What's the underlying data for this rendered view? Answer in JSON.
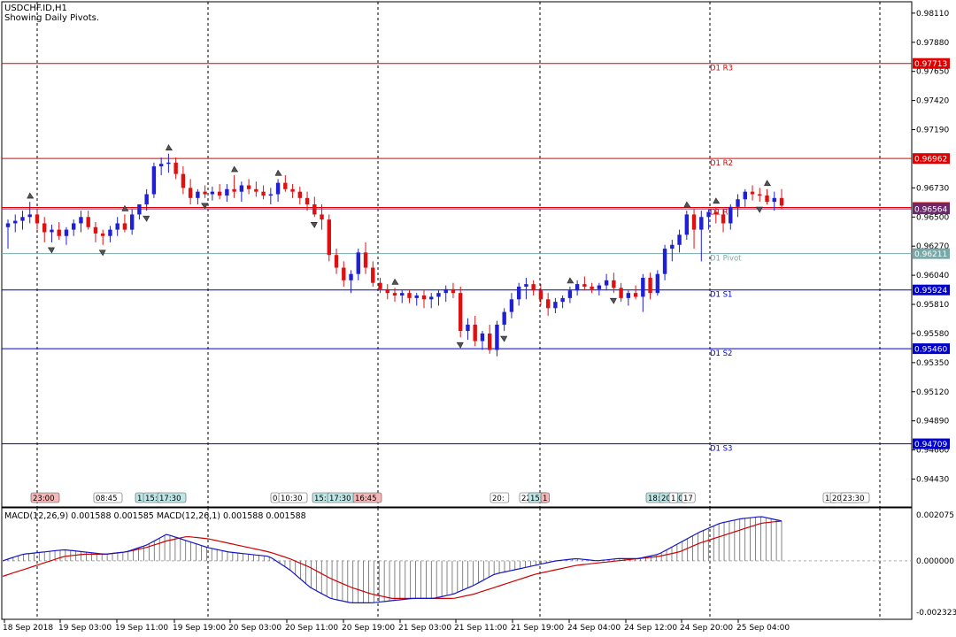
{
  "header": {
    "symbol": "USDCHF.ID,H1",
    "subtitle": "Showing Daily Pivots."
  },
  "macd_label": "MACD(12,26,9) 0.001588 0.001585 MACD(12,26,1) 0.001588 0.001588",
  "colors": {
    "bull": "#1f1fd6",
    "bear": "#e01010",
    "resistance": "#e00000",
    "support": "#0000cc",
    "pivot": "#7aa8a8",
    "macd_signal": "#cc0000",
    "macd_main": "#1515c8",
    "grid": "#000000"
  },
  "chart_data": [
    {
      "type": "candlestick",
      "title": "USDCHF.ID,H1",
      "ylim": [
        0.9421,
        0.982
      ],
      "y_ticks": [
        "0.98110",
        "0.97880",
        "0.97650",
        "0.97420",
        "0.97190",
        "0.96730",
        "0.96500",
        "0.96270",
        "0.96040",
        "0.95810",
        "0.95580",
        "0.95350",
        "0.95120",
        "0.94890",
        "0.94660",
        "0.94430"
      ],
      "x_tick_labels": [
        "18 Sep 2018",
        "19 Sep 03:00",
        "19 Sep 11:00",
        "19 Sep 19:00",
        "20 Sep 03:00",
        "20 Sep 11:00",
        "20 Sep 19:00",
        "21 Sep 03:00",
        "21 Sep 11:00",
        "21 Sep 19:00",
        "24 Sep 04:00",
        "24 Sep 12:00",
        "24 Sep 20:00",
        "25 Sep 04:00"
      ],
      "pivots": [
        {
          "name": "D1 R3",
          "value": 0.97713,
          "label": "0.97713",
          "kind": "resistance"
        },
        {
          "name": "D1 R2",
          "value": 0.96962,
          "label": "0.96962",
          "kind": "resistance"
        },
        {
          "name": "D1 R1",
          "value": 0.96575,
          "label": "0.96575",
          "kind": "resistance"
        },
        {
          "name": "D1 Pivot",
          "value": 0.96211,
          "label": "0.96211",
          "kind": "pivot"
        },
        {
          "name": "D1 S1",
          "value": 0.95924,
          "label": "0.95924",
          "kind": "support"
        },
        {
          "name": "D1 S2",
          "value": 0.9546,
          "label": "0.95460",
          "kind": "support"
        },
        {
          "name": "D1 S3",
          "value": 0.94709,
          "label": "0.94709",
          "kind": "support"
        }
      ],
      "current_price": {
        "value": 0.96564,
        "label": "0.96564"
      },
      "session_labels": [
        {
          "text": "23:00",
          "kind": "red"
        },
        {
          "text": "08:45",
          "kind": "plain"
        },
        {
          "text": "1",
          "kind": "teal"
        },
        {
          "text": "15:",
          "kind": "teal"
        },
        {
          "text": "17:30",
          "kind": "teal"
        },
        {
          "text": "0",
          "kind": "plain"
        },
        {
          "text": "10:30",
          "kind": "plain"
        },
        {
          "text": "15:",
          "kind": "teal"
        },
        {
          "text": "17:30",
          "kind": "teal"
        },
        {
          "text": "16:45",
          "kind": "red"
        },
        {
          "text": "20:",
          "kind": "plain"
        },
        {
          "text": "22:30",
          "kind": "plain"
        },
        {
          "text": "15:",
          "kind": "teal"
        },
        {
          "text": "1",
          "kind": "red"
        },
        {
          "text": "18:",
          "kind": "teal"
        },
        {
          "text": "20:00",
          "kind": "teal"
        },
        {
          "text": "1",
          "kind": "plain"
        },
        {
          "text": "17",
          "kind": "plain"
        },
        {
          "text": "18",
          "kind": "plain"
        },
        {
          "text": "20:00",
          "kind": "plain"
        },
        {
          "text": "23:30",
          "kind": "plain"
        }
      ],
      "candles": [
        [
          0.9642,
          0.9648,
          0.9625,
          0.9645
        ],
        [
          0.9645,
          0.9652,
          0.9638,
          0.9647
        ],
        [
          0.9647,
          0.9655,
          0.964,
          0.965
        ],
        [
          0.965,
          0.9662,
          0.9645,
          0.9652
        ],
        [
          0.9652,
          0.9656,
          0.964,
          0.9645
        ],
        [
          0.9645,
          0.965,
          0.963,
          0.9638
        ],
        [
          0.9638,
          0.9644,
          0.963,
          0.964
        ],
        [
          0.964,
          0.9646,
          0.9632,
          0.9635
        ],
        [
          0.9635,
          0.9642,
          0.9628,
          0.964
        ],
        [
          0.964,
          0.9648,
          0.9635,
          0.9645
        ],
        [
          0.9645,
          0.9655,
          0.9638,
          0.965
        ],
        [
          0.965,
          0.9655,
          0.964,
          0.9642
        ],
        [
          0.9642,
          0.9646,
          0.963,
          0.9637
        ],
        [
          0.9637,
          0.964,
          0.9628,
          0.9635
        ],
        [
          0.9635,
          0.9643,
          0.963,
          0.964
        ],
        [
          0.964,
          0.965,
          0.9635,
          0.9645
        ],
        [
          0.9645,
          0.9652,
          0.9638,
          0.964
        ],
        [
          0.964,
          0.9656,
          0.9636,
          0.9652
        ],
        [
          0.9652,
          0.966,
          0.9648,
          0.966
        ],
        [
          0.966,
          0.9672,
          0.9655,
          0.9668
        ],
        [
          0.9668,
          0.9693,
          0.9665,
          0.969
        ],
        [
          0.969,
          0.9697,
          0.9683,
          0.9692
        ],
        [
          0.9692,
          0.97,
          0.9685,
          0.9693
        ],
        [
          0.9693,
          0.9697,
          0.968,
          0.9684
        ],
        [
          0.9684,
          0.969,
          0.9668,
          0.9673
        ],
        [
          0.9673,
          0.968,
          0.966,
          0.9665
        ],
        [
          0.9665,
          0.9672,
          0.966,
          0.967
        ],
        [
          0.967,
          0.9675,
          0.9665,
          0.9668
        ],
        [
          0.9668,
          0.9674,
          0.9663,
          0.967
        ],
        [
          0.967,
          0.9676,
          0.9664,
          0.9667
        ],
        [
          0.9667,
          0.9676,
          0.9662,
          0.9672
        ],
        [
          0.9672,
          0.9683,
          0.9665,
          0.967
        ],
        [
          0.967,
          0.9678,
          0.9662,
          0.9675
        ],
        [
          0.9675,
          0.968,
          0.9668,
          0.9672
        ],
        [
          0.9672,
          0.9678,
          0.9666,
          0.967
        ],
        [
          0.967,
          0.9675,
          0.9664,
          0.9667
        ],
        [
          0.9667,
          0.9673,
          0.966,
          0.9668
        ],
        [
          0.9668,
          0.968,
          0.9662,
          0.9677
        ],
        [
          0.9677,
          0.9683,
          0.967,
          0.9672
        ],
        [
          0.9672,
          0.9676,
          0.9665,
          0.967
        ],
        [
          0.967,
          0.9674,
          0.966,
          0.9665
        ],
        [
          0.9665,
          0.967,
          0.9655,
          0.966
        ],
        [
          0.966,
          0.9666,
          0.965,
          0.9652
        ],
        [
          0.9652,
          0.966,
          0.964,
          0.9648
        ],
        [
          0.9648,
          0.9652,
          0.9615,
          0.962
        ],
        [
          0.962,
          0.9625,
          0.9605,
          0.961
        ],
        [
          0.961,
          0.9615,
          0.9595,
          0.96
        ],
        [
          0.96,
          0.9608,
          0.959,
          0.9605
        ],
        [
          0.9605,
          0.9625,
          0.96,
          0.9622
        ],
        [
          0.9622,
          0.963,
          0.9605,
          0.961
        ],
        [
          0.961,
          0.9615,
          0.9595,
          0.9598
        ],
        [
          0.9598,
          0.9602,
          0.959,
          0.9593
        ],
        [
          0.9593,
          0.9597,
          0.9585,
          0.959
        ],
        [
          0.959,
          0.9594,
          0.9583,
          0.9588
        ],
        [
          0.9588,
          0.9592,
          0.9582,
          0.959
        ],
        [
          0.959,
          0.9593,
          0.9582,
          0.9586
        ],
        [
          0.9586,
          0.959,
          0.958,
          0.9588
        ],
        [
          0.9588,
          0.9592,
          0.9578,
          0.9585
        ],
        [
          0.9585,
          0.959,
          0.9578,
          0.9587
        ],
        [
          0.9587,
          0.9592,
          0.958,
          0.959
        ],
        [
          0.959,
          0.9596,
          0.9583,
          0.9593
        ],
        [
          0.9593,
          0.9598,
          0.9586,
          0.959
        ],
        [
          0.959,
          0.9595,
          0.9555,
          0.956
        ],
        [
          0.956,
          0.957,
          0.9553,
          0.9565
        ],
        [
          0.9565,
          0.9572,
          0.9548,
          0.9552
        ],
        [
          0.9552,
          0.956,
          0.9545,
          0.9558
        ],
        [
          0.9558,
          0.9565,
          0.9542,
          0.9545
        ],
        [
          0.9545,
          0.9568,
          0.954,
          0.9565
        ],
        [
          0.9565,
          0.9578,
          0.956,
          0.9575
        ],
        [
          0.9575,
          0.959,
          0.957,
          0.9585
        ],
        [
          0.9585,
          0.9598,
          0.958,
          0.9595
        ],
        [
          0.9595,
          0.9602,
          0.9585,
          0.9597
        ],
        [
          0.9597,
          0.96,
          0.9588,
          0.9592
        ],
        [
          0.9592,
          0.9597,
          0.958,
          0.9585
        ],
        [
          0.9585,
          0.959,
          0.9572,
          0.9578
        ],
        [
          0.9578,
          0.9586,
          0.9574,
          0.9583
        ],
        [
          0.9583,
          0.9588,
          0.9578,
          0.9586
        ],
        [
          0.9586,
          0.9595,
          0.9582,
          0.9592
        ],
        [
          0.9592,
          0.96,
          0.9588,
          0.9597
        ],
        [
          0.9597,
          0.9603,
          0.9592,
          0.9595
        ],
        [
          0.9595,
          0.9598,
          0.959,
          0.9593
        ],
        [
          0.9593,
          0.9598,
          0.9588,
          0.9596
        ],
        [
          0.9596,
          0.9605,
          0.9592,
          0.96
        ],
        [
          0.96,
          0.9606,
          0.959,
          0.9594
        ],
        [
          0.9594,
          0.9598,
          0.9583,
          0.9586
        ],
        [
          0.9586,
          0.9592,
          0.958,
          0.959
        ],
        [
          0.959,
          0.9596,
          0.9585,
          0.9587
        ],
        [
          0.9587,
          0.9605,
          0.9575,
          0.9602
        ],
        [
          0.9602,
          0.9606,
          0.9585,
          0.959
        ],
        [
          0.959,
          0.9608,
          0.9588,
          0.9605
        ],
        [
          0.9605,
          0.9628,
          0.96,
          0.9625
        ],
        [
          0.9625,
          0.9632,
          0.9615,
          0.9628
        ],
        [
          0.9628,
          0.964,
          0.9622,
          0.9636
        ],
        [
          0.9636,
          0.9655,
          0.9632,
          0.9652
        ],
        [
          0.9652,
          0.9656,
          0.9625,
          0.964
        ],
        [
          0.964,
          0.9655,
          0.9615,
          0.965
        ],
        [
          0.965,
          0.9656,
          0.964,
          0.9654
        ],
        [
          0.9654,
          0.9658,
          0.9645,
          0.9652
        ],
        [
          0.9652,
          0.9656,
          0.9638,
          0.9645
        ],
        [
          0.9645,
          0.966,
          0.964,
          0.9658
        ],
        [
          0.9658,
          0.9668,
          0.965,
          0.9664
        ],
        [
          0.9664,
          0.9672,
          0.9658,
          0.967
        ],
        [
          0.967,
          0.9675,
          0.9663,
          0.9668
        ],
        [
          0.9668,
          0.9673,
          0.9662,
          0.9667
        ],
        [
          0.9667,
          0.9672,
          0.966,
          0.9662
        ],
        [
          0.9662,
          0.967,
          0.9655,
          0.9665
        ],
        [
          0.9665,
          0.9672,
          0.9656,
          0.9659
        ]
      ]
    },
    {
      "type": "macd",
      "ylim": [
        -0.002323,
        0.002075
      ],
      "y_ticks": [
        "0.002075",
        "0.000000",
        "-0.002323"
      ],
      "x_tick_labels": [
        "18 Sep 2018",
        "19 Sep 03:00",
        "19 Sep 11:00",
        "19 Sep 19:00",
        "20 Sep 03:00",
        "20 Sep 11:00",
        "20 Sep 19:00",
        "21 Sep 03:00",
        "21 Sep 11:00",
        "21 Sep 19:00",
        "24 Sep 04:00",
        "24 Sep 12:00",
        "24 Sep 20:00",
        "25 Sep 04:00"
      ],
      "series": [
        {
          "name": "MACD(12,26,9)",
          "value": 0.001588,
          "signal": 0.001585
        },
        {
          "name": "MACD(12,26,1)",
          "value": 0.001588,
          "signal": 0.001588
        }
      ],
      "main_anchors": [
        0.0,
        0.0003,
        0.0004,
        0.0005,
        0.0004,
        0.0003,
        0.0004,
        0.0007,
        0.0012,
        0.0009,
        0.0006,
        0.0004,
        0.0003,
        0.0002,
        -0.0004,
        -0.0012,
        -0.0017,
        -0.0019,
        -0.0019,
        -0.0018,
        -0.0017,
        -0.0017,
        -0.0015,
        -0.0011,
        -0.0006,
        -0.0004,
        -0.0002,
        0.0,
        0.0001,
        0.0,
        0.0001,
        0.0001,
        0.0003,
        0.0008,
        0.0013,
        0.0017,
        0.0019,
        0.002,
        0.0018
      ],
      "signal_anchors": [
        -0.0007,
        -0.0004,
        -0.0001,
        0.0002,
        0.0003,
        0.0003,
        0.0004,
        0.0006,
        0.0009,
        0.0011,
        0.001,
        0.0008,
        0.0006,
        0.0004,
        0.0001,
        -0.0003,
        -0.0008,
        -0.0012,
        -0.0015,
        -0.0017,
        -0.0017,
        -0.0017,
        -0.0017,
        -0.0015,
        -0.0012,
        -0.0009,
        -0.0006,
        -0.0004,
        -0.0002,
        -0.0001,
        0.0,
        0.0001,
        0.0002,
        0.0004,
        0.0008,
        0.0011,
        0.0014,
        0.0017,
        0.0018
      ]
    }
  ]
}
